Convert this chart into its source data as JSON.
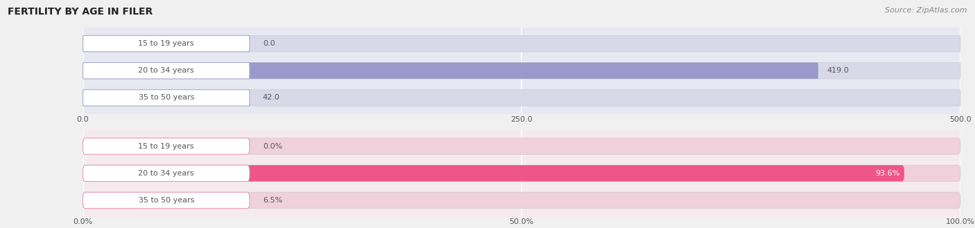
{
  "title": "FERTILITY BY AGE IN FILER",
  "source": "Source: ZipAtlas.com",
  "top_chart": {
    "categories": [
      "15 to 19 years",
      "20 to 34 years",
      "35 to 50 years"
    ],
    "values": [
      0.0,
      419.0,
      42.0
    ],
    "xlim": [
      0,
      500
    ],
    "xticks": [
      0.0,
      250.0,
      500.0
    ],
    "bar_color": "#9999cc",
    "bg_color": "#e8e8f2",
    "bar_bg_color": "#d8d8e8",
    "bar_height": 0.6
  },
  "bottom_chart": {
    "categories": [
      "15 to 19 years",
      "20 to 34 years",
      "35 to 50 years"
    ],
    "values": [
      0.0,
      93.6,
      6.5
    ],
    "xlim": [
      0,
      100
    ],
    "xticks": [
      0.0,
      50.0,
      100.0
    ],
    "xtick_labels": [
      "0.0%",
      "50.0%",
      "100.0%"
    ],
    "bar_color": "#ee5588",
    "bg_color": "#f5eaee",
    "bar_bg_color": "#f0d0da",
    "bar_height": 0.6
  },
  "fig_bg_color": "#f0f0f0",
  "label_color": "#555555",
  "value_color_dark": "#555555",
  "value_color_light": "#ffffff",
  "title_color": "#222222",
  "title_fontsize": 10,
  "label_fontsize": 8,
  "value_fontsize": 8,
  "axis_fontsize": 8,
  "source_fontsize": 8,
  "label_pill_color": "#ffffff",
  "label_pill_edge_top": "#aaaacc",
  "label_pill_edge_bot": "#ee99bb"
}
